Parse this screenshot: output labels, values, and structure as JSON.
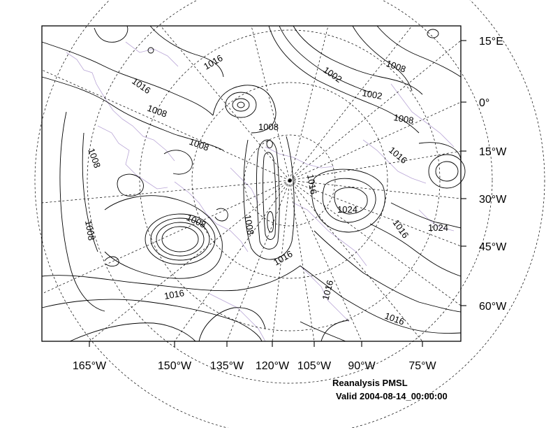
{
  "map": {
    "title": "Reanalysis PMSL",
    "valid": "Valid 2004-08-14_00:00:00",
    "lon_ticks": [
      "165°W",
      "150°W",
      "135°W",
      "120°W",
      "105°W",
      "90°W",
      "75°W"
    ],
    "lat_ticks": [
      "15°E",
      "0°",
      "15°W",
      "30°W",
      "45°W",
      "60°W"
    ],
    "contour_labels": [
      "1016",
      "1016",
      "1002",
      "1008",
      "1002",
      "1008",
      "1008",
      "1008",
      "1008",
      "1016",
      "1008",
      "1016",
      "1024",
      "1008",
      "1008",
      "1016",
      "1024",
      "1008",
      "1016",
      "1016",
      "1016",
      "1016"
    ],
    "colors": {
      "contour": "#000000",
      "coastline": "#b9a6d6",
      "graticule": "#000000"
    }
  }
}
